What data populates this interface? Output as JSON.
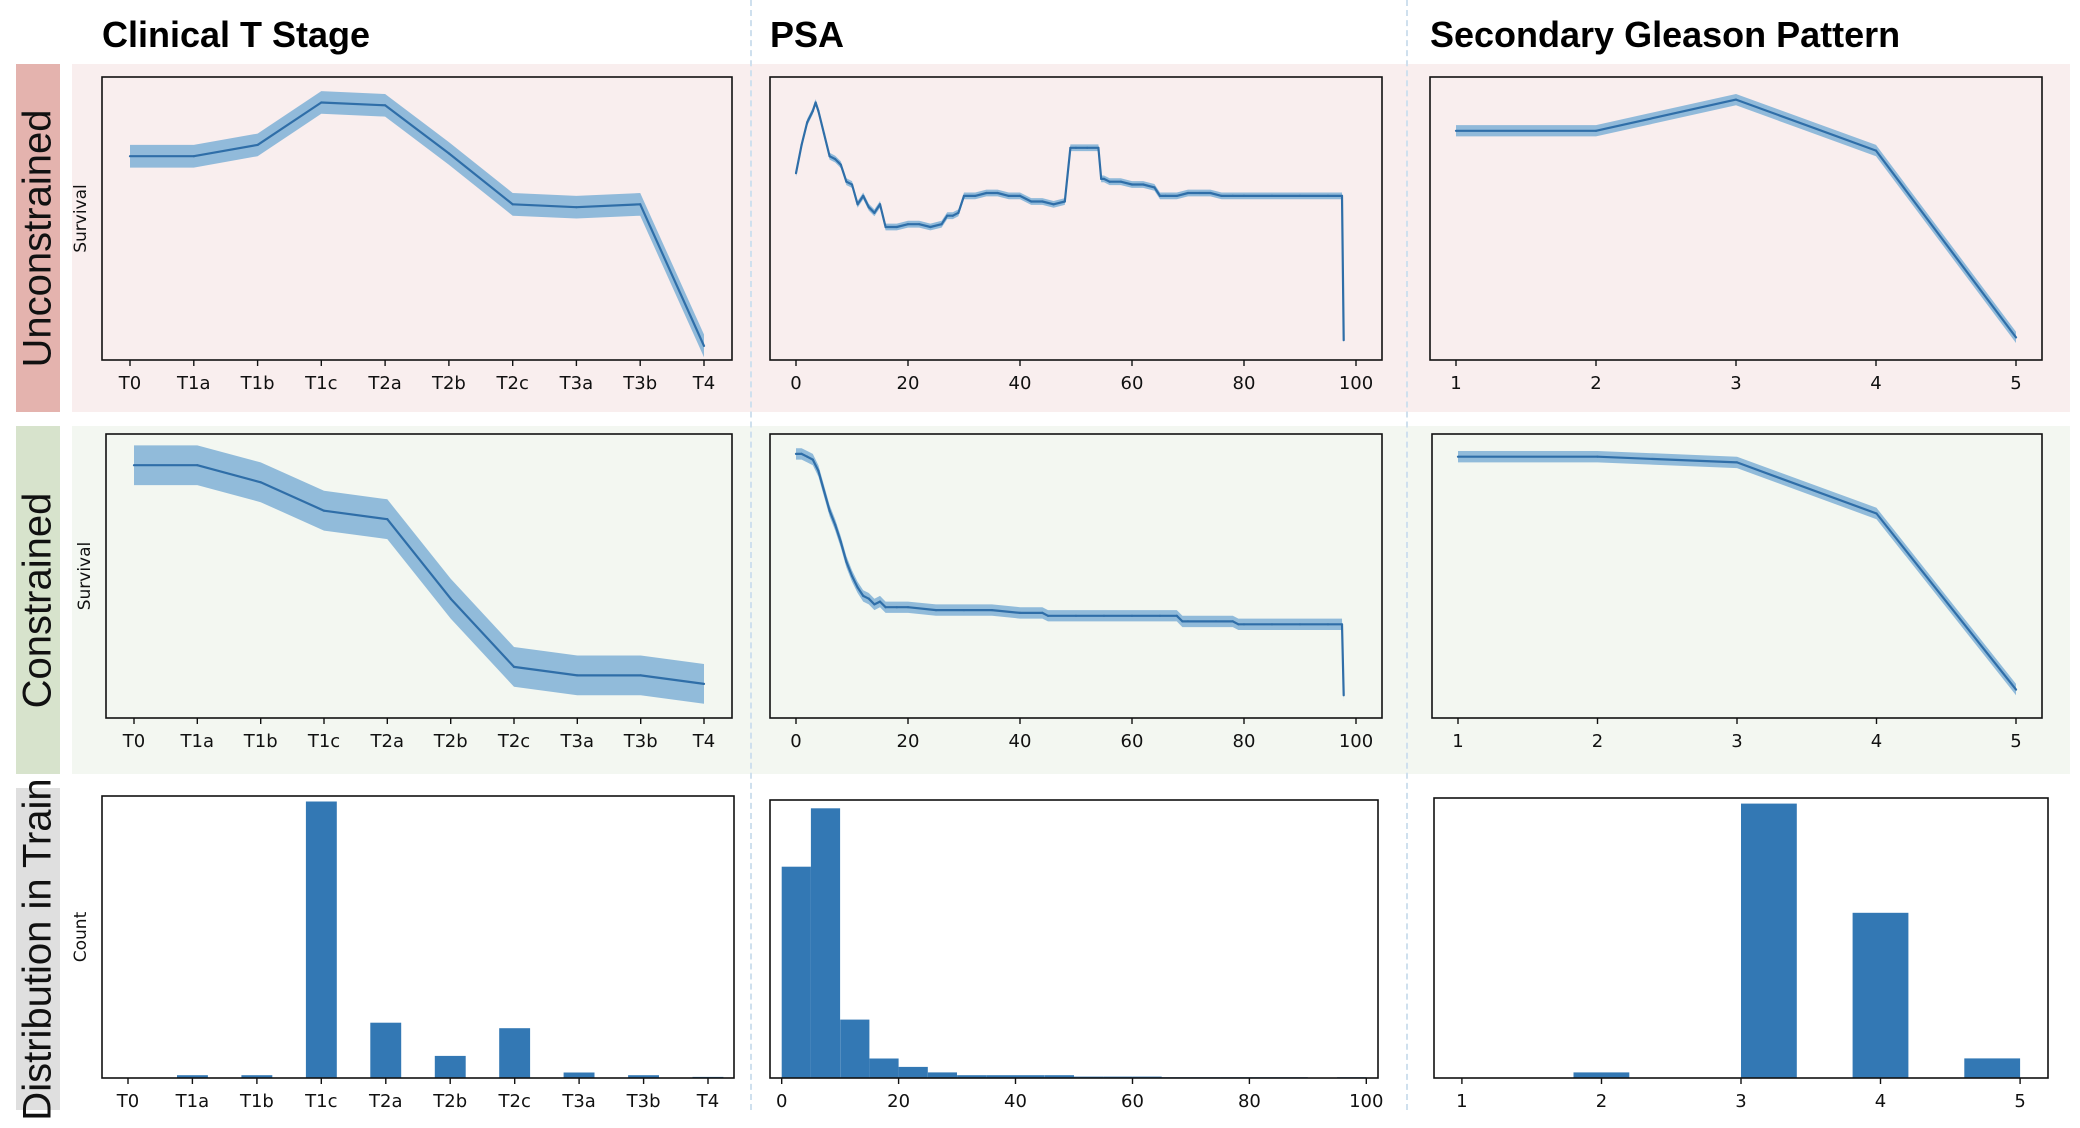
{
  "figure": {
    "column_titles": [
      "Clinical T Stage",
      "PSA",
      "Secondary Gleason Pattern"
    ],
    "row_labels": [
      "Unconstrained",
      "Constrained",
      "Distribution in Train"
    ],
    "colors": {
      "unconstrained_bg": "#f9eeee",
      "unconstrained_label_bg": "#e4b3ae",
      "constrained_bg": "#f3f7f1",
      "constrained_label_bg": "#d7e3cc",
      "distribution_label_bg": "#dfdfdf",
      "line": "#2f6ea8",
      "band": "#7fb0d6",
      "bar": "#3378b4"
    }
  },
  "chart_data": [
    {
      "id": "tstage-unconstrained",
      "row": "Unconstrained",
      "column": "Clinical T Stage",
      "type": "line",
      "ylabel": "Survival",
      "xlabel": "",
      "categories": [
        "T0",
        "T1a",
        "T1b",
        "T1c",
        "T2a",
        "T2b",
        "T2c",
        "T3a",
        "T3b",
        "T4"
      ],
      "values": [
        0.72,
        0.72,
        0.76,
        0.91,
        0.9,
        0.73,
        0.55,
        0.54,
        0.55,
        0.05
      ],
      "band": 0.04,
      "ylim": [
        0,
        1
      ]
    },
    {
      "id": "psa-unconstrained",
      "row": "Unconstrained",
      "column": "PSA",
      "type": "line",
      "ylabel": "",
      "xlabel": "",
      "x": [
        0,
        1,
        2,
        3,
        3.5,
        4,
        5,
        6,
        7,
        8,
        9,
        10,
        11,
        12,
        13,
        14,
        15,
        16,
        18,
        20,
        22,
        24,
        26,
        27,
        28,
        29,
        30,
        32,
        34,
        36,
        38,
        40,
        42,
        44,
        46,
        48,
        49,
        50,
        52,
        54,
        54.5,
        55,
        56,
        58,
        60,
        62,
        64,
        65,
        66,
        68,
        70,
        72,
        74,
        76,
        78,
        80,
        85,
        90,
        95,
        97.5,
        97.8
      ],
      "values": [
        0.66,
        0.76,
        0.84,
        0.88,
        0.91,
        0.88,
        0.8,
        0.72,
        0.71,
        0.69,
        0.63,
        0.62,
        0.55,
        0.58,
        0.54,
        0.52,
        0.55,
        0.47,
        0.47,
        0.48,
        0.48,
        0.47,
        0.48,
        0.51,
        0.51,
        0.52,
        0.58,
        0.58,
        0.59,
        0.59,
        0.58,
        0.58,
        0.56,
        0.56,
        0.55,
        0.56,
        0.75,
        0.75,
        0.75,
        0.75,
        0.64,
        0.64,
        0.63,
        0.63,
        0.62,
        0.62,
        0.61,
        0.58,
        0.58,
        0.58,
        0.59,
        0.59,
        0.59,
        0.58,
        0.58,
        0.58,
        0.58,
        0.58,
        0.58,
        0.58,
        0.07
      ],
      "band": 0.012,
      "xlim": [
        0,
        100
      ],
      "ylim": [
        0,
        1
      ],
      "xticks": [
        0,
        20,
        40,
        60,
        80,
        100
      ]
    },
    {
      "id": "gleason-unconstrained",
      "row": "Unconstrained",
      "column": "Secondary Gleason Pattern",
      "type": "line",
      "ylabel": "",
      "xlabel": "",
      "x": [
        1,
        2,
        3,
        4,
        5
      ],
      "values": [
        0.81,
        0.81,
        0.92,
        0.74,
        0.08
      ],
      "band": 0.02,
      "xlim": [
        1,
        5
      ],
      "ylim": [
        0,
        1
      ],
      "xticks": [
        1,
        2,
        3,
        4,
        5
      ]
    },
    {
      "id": "tstage-constrained",
      "row": "Constrained",
      "column": "Clinical T Stage",
      "type": "line",
      "ylabel": "Survival",
      "xlabel": "",
      "categories": [
        "T0",
        "T1a",
        "T1b",
        "T1c",
        "T2a",
        "T2b",
        "T2c",
        "T3a",
        "T3b",
        "T4"
      ],
      "values": [
        0.89,
        0.89,
        0.83,
        0.73,
        0.7,
        0.42,
        0.18,
        0.15,
        0.15,
        0.12
      ],
      "band": 0.07,
      "ylim": [
        0,
        1
      ]
    },
    {
      "id": "psa-constrained",
      "row": "Constrained",
      "column": "PSA",
      "type": "line",
      "ylabel": "",
      "xlabel": "",
      "x": [
        0,
        1,
        2,
        3,
        4,
        5,
        6,
        7,
        8,
        9,
        10,
        11,
        12,
        13,
        14,
        15,
        16,
        18,
        20,
        25,
        30,
        35,
        40,
        44,
        45,
        50,
        55,
        60,
        65,
        68,
        69,
        70,
        75,
        78,
        79,
        80,
        85,
        90,
        95,
        97.5,
        97.8
      ],
      "values": [
        0.93,
        0.93,
        0.92,
        0.91,
        0.87,
        0.8,
        0.73,
        0.68,
        0.62,
        0.55,
        0.5,
        0.46,
        0.43,
        0.42,
        0.4,
        0.41,
        0.39,
        0.39,
        0.39,
        0.38,
        0.38,
        0.38,
        0.37,
        0.37,
        0.36,
        0.36,
        0.36,
        0.36,
        0.36,
        0.36,
        0.34,
        0.34,
        0.34,
        0.34,
        0.33,
        0.33,
        0.33,
        0.33,
        0.33,
        0.33,
        0.08
      ],
      "band": 0.02,
      "xlim": [
        0,
        100
      ],
      "ylim": [
        0,
        1
      ],
      "xticks": [
        0,
        20,
        40,
        60,
        80,
        100
      ]
    },
    {
      "id": "gleason-constrained",
      "row": "Constrained",
      "column": "Secondary Gleason Pattern",
      "type": "line",
      "ylabel": "",
      "xlabel": "",
      "x": [
        1,
        2,
        3,
        4,
        5
      ],
      "values": [
        0.92,
        0.92,
        0.9,
        0.72,
        0.1
      ],
      "band": 0.02,
      "xlim": [
        1,
        5
      ],
      "ylim": [
        0,
        1
      ],
      "xticks": [
        1,
        2,
        3,
        4,
        5
      ]
    },
    {
      "id": "tstage-distribution",
      "row": "Distribution in Train",
      "column": "Clinical T Stage",
      "type": "bar",
      "ylabel": "Count",
      "xlabel": "",
      "categories": [
        "T0",
        "T1a",
        "T1b",
        "T1c",
        "T2a",
        "T2b",
        "T2c",
        "T3a",
        "T3b",
        "T4"
      ],
      "values": [
        0,
        1,
        1,
        100,
        20,
        8,
        18,
        2,
        1,
        0.4
      ],
      "ylim": [
        0,
        102
      ]
    },
    {
      "id": "psa-distribution",
      "row": "Distribution in Train",
      "column": "PSA",
      "type": "histogram",
      "ylabel": "",
      "xlabel": "",
      "bin_edges": [
        0,
        5,
        10,
        15,
        20,
        25,
        30,
        35,
        40,
        45,
        50,
        55,
        60,
        65,
        70,
        75,
        80,
        85,
        90,
        95,
        100
      ],
      "values": [
        76,
        97,
        21,
        7,
        4,
        2,
        1,
        1,
        1,
        1,
        0.5,
        0.5,
        0.5,
        0.3,
        0.3,
        0.3,
        0.3,
        0.3,
        0,
        0.3
      ],
      "xlim": [
        -2,
        102
      ],
      "ylim": [
        0,
        100
      ],
      "xticks": [
        0,
        20,
        40,
        60,
        80,
        100
      ]
    },
    {
      "id": "gleason-distribution",
      "row": "Distribution in Train",
      "column": "Secondary Gleason Pattern",
      "type": "histogram",
      "ylabel": "",
      "xlabel": "",
      "bin_edges": [
        1.8,
        2.2,
        3.0,
        3.4,
        3.8,
        4.2,
        4.6,
        5.0
      ],
      "values": [
        2,
        0,
        98,
        0,
        59,
        0,
        7
      ],
      "xlim": [
        0.8,
        5.2
      ],
      "ylim": [
        0,
        100
      ],
      "xticks": [
        1,
        2,
        3,
        4,
        5
      ]
    }
  ]
}
